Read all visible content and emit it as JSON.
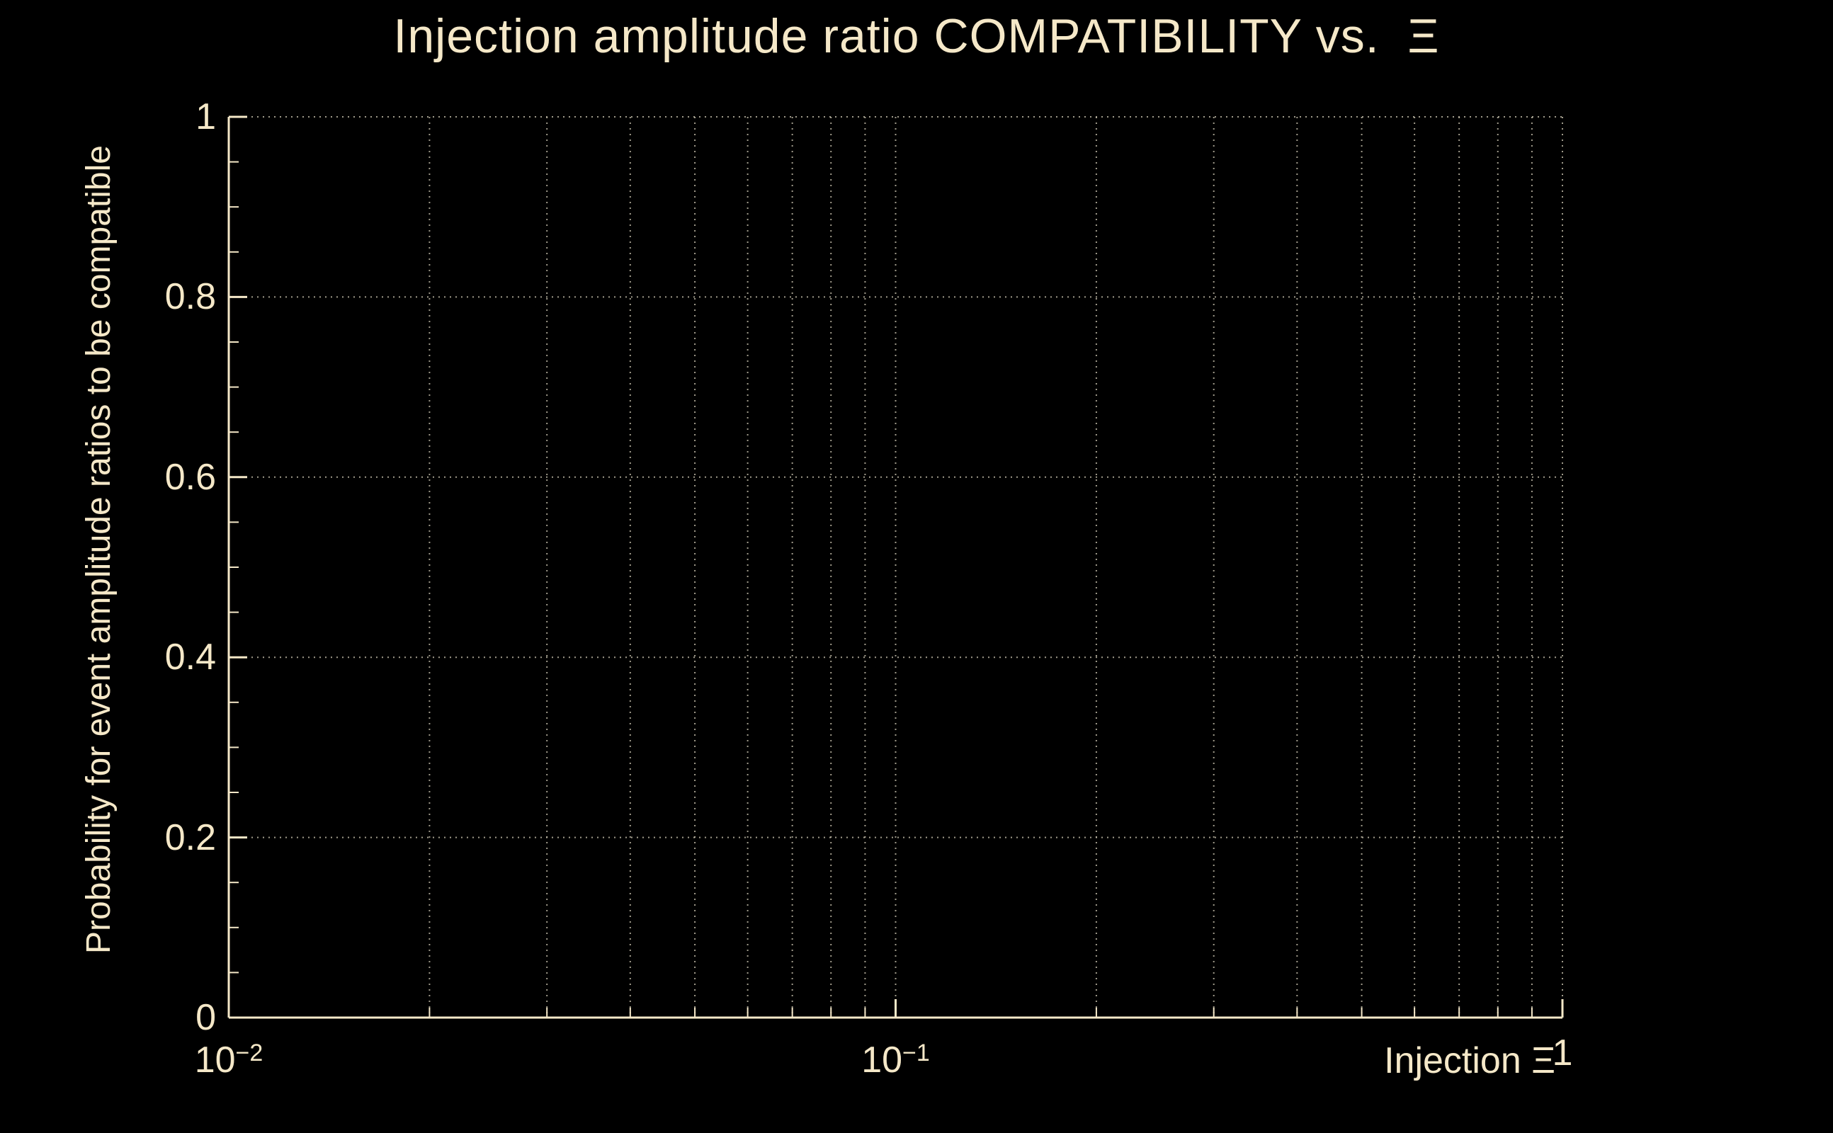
{
  "app": {
    "background": "#000000",
    "foreground": "#f5e8c8",
    "grid_color": "#c9c2ae"
  },
  "chart_data": {
    "type": "line",
    "title": "Injection amplitude ratio COMPATIBILITY vs.  Ξ",
    "xlabel": "Injection Ξ",
    "ylabel": "Probability for event amplitude ratios to be compatible",
    "x_scale": "log",
    "y_scale": "linear",
    "xlim": [
      0.01,
      1
    ],
    "ylim": [
      0,
      1
    ],
    "x_major_ticks": [
      {
        "value": 0.01,
        "base": "10",
        "exp": "−2"
      },
      {
        "value": 0.1,
        "base": "10",
        "exp": "−1"
      },
      {
        "value": 1,
        "base": "1",
        "exp": ""
      }
    ],
    "y_major_ticks": [
      {
        "value": 0,
        "label": "0"
      },
      {
        "value": 0.2,
        "label": "0.2"
      },
      {
        "value": 0.4,
        "label": "0.4"
      },
      {
        "value": 0.6,
        "label": "0.6"
      },
      {
        "value": 0.8,
        "label": "0.8"
      },
      {
        "value": 1,
        "label": "1"
      }
    ],
    "y_minor_step": 0.05,
    "grid": "dotted",
    "legend_position": "none",
    "series": []
  }
}
